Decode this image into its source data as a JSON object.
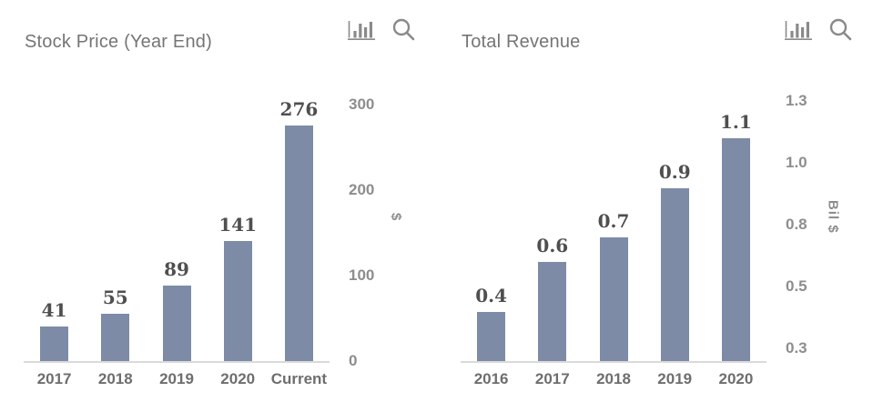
{
  "colors": {
    "bar": "#7d8ba6",
    "axis_line": "#dadada",
    "title_text": "#757575",
    "tick_text": "#8d8d8d",
    "category_text": "#6e6e6e",
    "value_label_text": "#4f4f4f",
    "icon": "#8a8a8a"
  },
  "toolbar": {
    "icons": [
      "bar-chart-icon",
      "search-icon"
    ]
  },
  "chart_data": [
    {
      "type": "bar",
      "title": "Stock Price (Year End)",
      "categories": [
        "2017",
        "2018",
        "2019",
        "2020",
        "Current"
      ],
      "values": [
        41,
        55,
        89,
        141,
        276
      ],
      "value_labels": [
        "41",
        "55",
        "89",
        "141",
        "276"
      ],
      "xlabel": "",
      "ylabel": "$",
      "ylim": [
        0,
        310
      ],
      "yticks": [
        {
          "label": "0",
          "value": 0
        },
        {
          "label": "100",
          "value": 100
        },
        {
          "label": "200",
          "value": 200
        },
        {
          "label": "300",
          "value": 300
        }
      ],
      "grid": false,
      "legend": false,
      "axis_side": "right"
    },
    {
      "type": "bar",
      "title": "Total Revenue",
      "categories": [
        "2016",
        "2017",
        "2018",
        "2019",
        "2020"
      ],
      "values": [
        0.4,
        0.6,
        0.7,
        0.9,
        1.1
      ],
      "value_labels": [
        "0.4",
        "0.6",
        "0.7",
        "0.9",
        "1.1"
      ],
      "xlabel": "",
      "ylabel": "Bil $",
      "ylim": [
        0.2,
        1.27
      ],
      "yticks": [
        {
          "label": "0.3",
          "value": 0.25
        },
        {
          "label": "0.5",
          "value": 0.5
        },
        {
          "label": "0.8",
          "value": 0.75
        },
        {
          "label": "1.0",
          "value": 1.0
        },
        {
          "label": "1.3",
          "value": 1.25
        }
      ],
      "grid": false,
      "legend": false,
      "axis_side": "right"
    }
  ]
}
